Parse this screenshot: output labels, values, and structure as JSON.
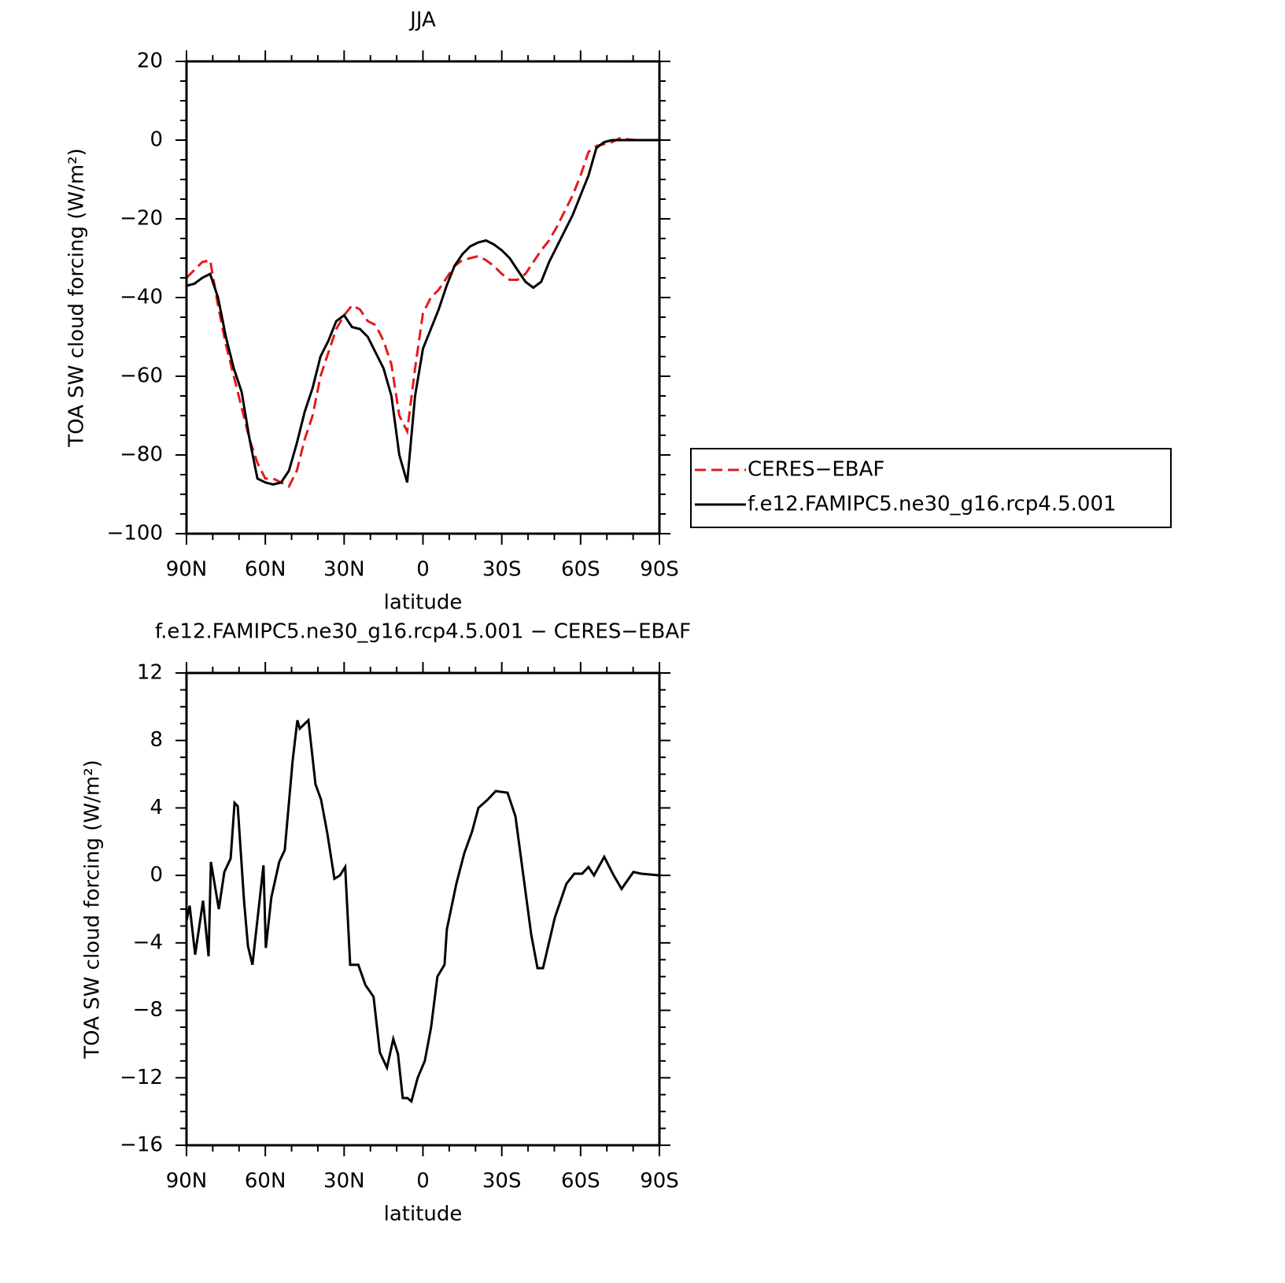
{
  "chart_data": [
    {
      "type": "line",
      "title": "JJA",
      "x_label": "latitude",
      "y_label": "TOA SW cloud forcing (W/m²)",
      "x": [
        90,
        87,
        84,
        81,
        78,
        75,
        72,
        69,
        66,
        63,
        60,
        57,
        54,
        51,
        48,
        45,
        42,
        39,
        36,
        33,
        30,
        27,
        24,
        21,
        18,
        15,
        12,
        9,
        6,
        3,
        0,
        -3,
        -6,
        -9,
        -12,
        -15,
        -18,
        -21,
        -24,
        -27,
        -30,
        -33,
        -36,
        -39,
        -42,
        -45,
        -48,
        -51,
        -54,
        -57,
        -60,
        -63,
        -66,
        -69,
        -72,
        -75,
        -78,
        -81,
        -84,
        -87,
        -90
      ],
      "xlim": [
        90,
        -90
      ],
      "xticks": [
        {
          "value": 90,
          "label": "90N"
        },
        {
          "value": 60,
          "label": "60N"
        },
        {
          "value": 30,
          "label": "30N"
        },
        0,
        {
          "value": -30,
          "label": "30S"
        },
        {
          "value": -60,
          "label": "60S"
        },
        {
          "value": -90,
          "label": "90S"
        }
      ],
      "xminorticks": [
        80,
        70,
        50,
        40,
        20,
        10,
        -10,
        -20,
        -40,
        -50,
        -70,
        -80
      ],
      "ylim": [
        -100,
        20
      ],
      "yticks": [
        {
          "value": -100,
          "label": "−100"
        },
        {
          "value": -80,
          "label": "−80"
        },
        {
          "value": -60,
          "label": "−60"
        },
        {
          "value": -40,
          "label": "−40"
        },
        {
          "value": -20,
          "label": "−20"
        },
        0,
        20
      ],
      "yminorticks": [
        -95,
        -90,
        -85,
        -75,
        -70,
        -65,
        -55,
        -50,
        -45,
        -35,
        -30,
        -25,
        -15,
        -10,
        -5,
        5,
        10,
        15
      ],
      "legend": "right",
      "series": [
        {
          "name": "CERES−EBAF",
          "color": "#e41a1c",
          "line_style": "dashed",
          "values": [
            -35,
            -33,
            -31,
            -30.5,
            -42,
            -52,
            -60,
            -68,
            -76,
            -82,
            -86,
            -86,
            -87,
            -88,
            -84,
            -76,
            -70,
            -60,
            -54,
            -48,
            -44.5,
            -42,
            -43,
            -46,
            -47,
            -51,
            -57,
            -70,
            -74,
            -58,
            -44,
            -40,
            -38,
            -35,
            -32,
            -30.5,
            -30,
            -29.5,
            -30.5,
            -32,
            -34,
            -35.5,
            -35.5,
            -34,
            -31,
            -28,
            -25.5,
            -22,
            -18,
            -14,
            -9,
            -3,
            -1.5,
            -1,
            -0.5,
            0.5,
            0.2,
            0,
            0,
            0,
            0
          ]
        },
        {
          "name": "f.e12.FAMIPC5.ne30_g16.rcp4.5.001",
          "color": "#000000",
          "line_style": "solid",
          "values": [
            -37,
            -36.5,
            -35,
            -34,
            -40,
            -50,
            -58,
            -64,
            -76,
            -86,
            -87,
            -87.5,
            -87,
            -84,
            -77,
            -69,
            -63,
            -55,
            -51,
            -46,
            -44.5,
            -47.5,
            -48,
            -50,
            -54,
            -58,
            -65,
            -80,
            -87,
            -65,
            -53,
            -48,
            -43,
            -37,
            -32,
            -29,
            -27,
            -26,
            -25.5,
            -26.5,
            -28,
            -30,
            -33,
            -36,
            -37.5,
            -36,
            -31,
            -27,
            -23,
            -19,
            -14,
            -9,
            -2,
            -0.5,
            0,
            0,
            0,
            0,
            0,
            0,
            0
          ]
        }
      ]
    },
    {
      "type": "line",
      "title": "f.e12.FAMIPC5.ne30_g16.rcp4.5.001 − CERES−EBAF",
      "x_label": "latitude",
      "y_label": "TOA SW cloud forcing (W/m²)",
      "x": [
        90,
        88.8,
        86.7,
        83.7,
        81.6,
        80.7,
        77.7,
        75.6,
        73.2,
        71.7,
        70.5,
        68.1,
        66.6,
        64.9,
        60.7,
        59.8,
        57.7,
        54.7,
        52.6,
        49.6,
        47.8,
        46.9,
        43.6,
        40.9,
        38.8,
        36.4,
        33.7,
        31.6,
        29.6,
        27.7,
        24.6,
        21.9,
        18.8,
        16.4,
        13.7,
        11.3,
        9.5,
        7.7,
        5.9,
        4.4,
        2,
        -0.7,
        -3.1,
        -5.5,
        -8.2,
        -9.1,
        -12.7,
        -15.7,
        -18.7,
        -21.1,
        -24.7,
        -27.7,
        -32.2,
        -35.2,
        -38.2,
        -41.2,
        -43.6,
        -45.7,
        -50.2,
        -54.6,
        -57.6,
        -60.6,
        -63,
        -65.1,
        -69,
        -72.6,
        -75.6,
        -80.1,
        -83.1,
        -90
      ],
      "xlim": [
        90,
        -90
      ],
      "xticks": [
        {
          "value": 90,
          "label": "90N"
        },
        {
          "value": 60,
          "label": "60N"
        },
        {
          "value": 30,
          "label": "30N"
        },
        0,
        {
          "value": -30,
          "label": "30S"
        },
        {
          "value": -60,
          "label": "60S"
        },
        {
          "value": -90,
          "label": "90S"
        }
      ],
      "xminorticks": [
        80,
        70,
        50,
        40,
        20,
        10,
        -10,
        -20,
        -40,
        -50,
        -70,
        -80
      ],
      "ylim": [
        -16,
        12
      ],
      "yticks": [
        {
          "value": -16,
          "label": "−16"
        },
        {
          "value": -12,
          "label": "−12"
        },
        {
          "value": -8,
          "label": "−8"
        },
        {
          "value": -4,
          "label": "−4"
        },
        0,
        4,
        8,
        12
      ],
      "yminorticks": [
        -15,
        -14,
        -13,
        -11,
        -10,
        -9,
        -7,
        -6,
        -5,
        -3,
        -2,
        -1,
        1,
        2,
        3,
        5,
        6,
        7,
        9,
        10,
        11
      ],
      "series": [
        {
          "color": "#000000",
          "line_style": "solid",
          "values": [
            -2.7,
            -1.8,
            -4.7,
            -1.5,
            -4.8,
            0.8,
            -2,
            0.2,
            1,
            4.3,
            4.1,
            -1.5,
            -4.2,
            -5.3,
            0.6,
            -4.3,
            -1.3,
            0.8,
            1.5,
            6.8,
            9.2,
            8.7,
            9.2,
            5.4,
            4.5,
            2.5,
            -0.2,
            0,
            0.5,
            -5.3,
            -5.3,
            -6.5,
            -7.2,
            -10.5,
            -11.4,
            -9.7,
            -10.6,
            -13.2,
            -13.2,
            -13.4,
            -12,
            -11,
            -9,
            -6,
            -5.3,
            -3.2,
            -0.5,
            1.3,
            2.6,
            4,
            4.5,
            5,
            4.9,
            3.5,
            0,
            -3.5,
            -5.5,
            -5.5,
            -2.5,
            -0.5,
            0.1,
            0.1,
            0.5,
            0,
            1.1,
            0,
            -0.8,
            0.2,
            0.1,
            0
          ]
        }
      ]
    }
  ]
}
